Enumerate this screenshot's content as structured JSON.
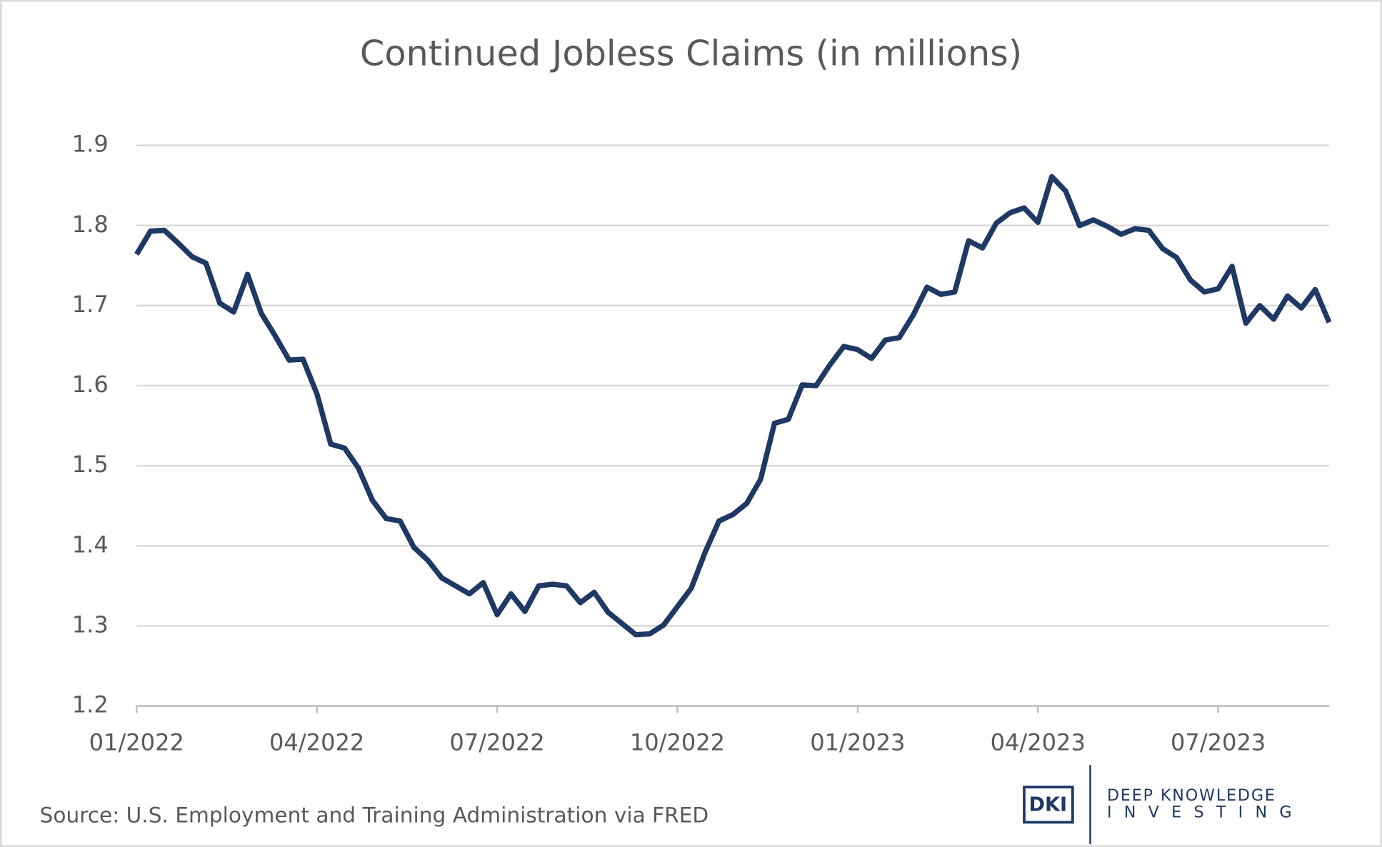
{
  "chart_data": {
    "type": "line",
    "title": "Continued Jobless Claims (in millions)",
    "source": "Source: U.S. Employment and Training Administration via FRED",
    "categories": [
      "01/2022",
      null,
      null,
      null,
      null,
      null,
      null,
      null,
      null,
      null,
      null,
      null,
      null,
      "04/2022",
      null,
      null,
      null,
      null,
      null,
      null,
      null,
      null,
      null,
      null,
      null,
      null,
      "07/2022",
      null,
      null,
      null,
      null,
      null,
      null,
      null,
      null,
      null,
      null,
      null,
      null,
      "10/2022",
      null,
      null,
      null,
      null,
      null,
      null,
      null,
      null,
      null,
      null,
      null,
      null,
      "01/2023",
      null,
      null,
      null,
      null,
      null,
      null,
      null,
      null,
      null,
      null,
      null,
      null,
      "04/2023",
      null,
      null,
      null,
      null,
      null,
      null,
      null,
      null,
      null,
      null,
      null,
      null,
      "07/2023",
      null,
      null,
      null,
      null,
      null,
      null,
      null,
      null
    ],
    "values": [
      1.764,
      1.793,
      1.794,
      1.778,
      1.761,
      1.753,
      1.703,
      1.692,
      1.739,
      1.69,
      1.662,
      1.632,
      1.633,
      1.59,
      1.527,
      1.522,
      1.497,
      1.457,
      1.434,
      1.431,
      1.398,
      1.382,
      1.36,
      1.35,
      1.34,
      1.354,
      1.314,
      1.34,
      1.318,
      1.35,
      1.352,
      1.35,
      1.329,
      1.342,
      1.317,
      1.303,
      1.289,
      1.29,
      1.301,
      1.324,
      1.347,
      1.392,
      1.431,
      1.439,
      1.453,
      1.483,
      1.553,
      1.558,
      1.601,
      1.6,
      1.626,
      1.649,
      1.645,
      1.634,
      1.657,
      1.66,
      1.688,
      1.723,
      1.714,
      1.717,
      1.781,
      1.772,
      1.803,
      1.816,
      1.822,
      1.804,
      1.861,
      1.843,
      1.8,
      1.807,
      1.799,
      1.789,
      1.796,
      1.794,
      1.771,
      1.76,
      1.732,
      1.717,
      1.721,
      1.749,
      1.678,
      1.7,
      1.683,
      1.712,
      1.697,
      1.72,
      1.679
    ],
    "color": "#1f3864",
    "ylim": [
      1.2,
      1.9
    ],
    "yticks": [
      1.2,
      1.3,
      1.4,
      1.5,
      1.6,
      1.7,
      1.8,
      1.9
    ],
    "grid": true
  },
  "branding": {
    "mark": "DKI",
    "line1": "DEEP KNOWLEDGE",
    "line2": "INVESTING"
  }
}
